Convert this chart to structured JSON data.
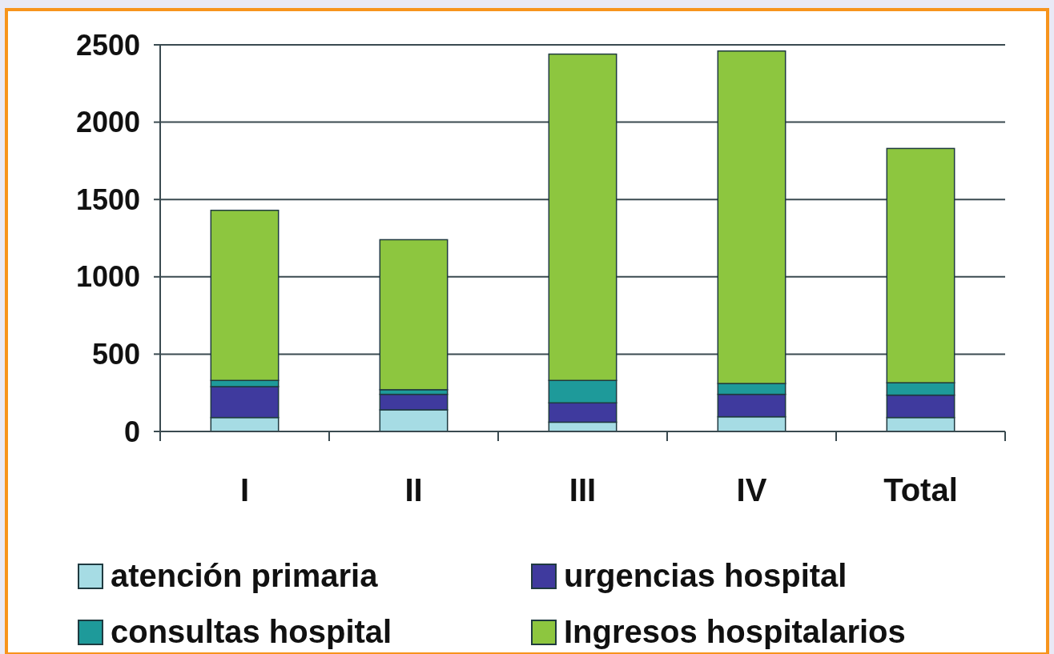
{
  "chart_data": {
    "type": "bar",
    "stacked": true,
    "categories": [
      "I",
      "II",
      "III",
      "IV",
      "Total"
    ],
    "series": [
      {
        "name": "atención primaria",
        "color": "#a6dce4",
        "values": [
          90,
          140,
          60,
          95,
          90
        ]
      },
      {
        "name": "urgencias hospital",
        "color": "#3f3a9e",
        "values": [
          200,
          100,
          125,
          145,
          145
        ]
      },
      {
        "name": "consultas hospital",
        "color": "#1e9a9a",
        "values": [
          40,
          30,
          145,
          70,
          80
        ]
      },
      {
        "name": "Ingresos hospitalarios",
        "color": "#8dc63f",
        "values": [
          1100,
          970,
          2110,
          2150,
          1515
        ]
      }
    ],
    "ylim": [
      0,
      2500
    ],
    "yticks": [
      0,
      500,
      1000,
      1500,
      2000,
      2500
    ],
    "grid": "y",
    "legend": "bottom"
  }
}
